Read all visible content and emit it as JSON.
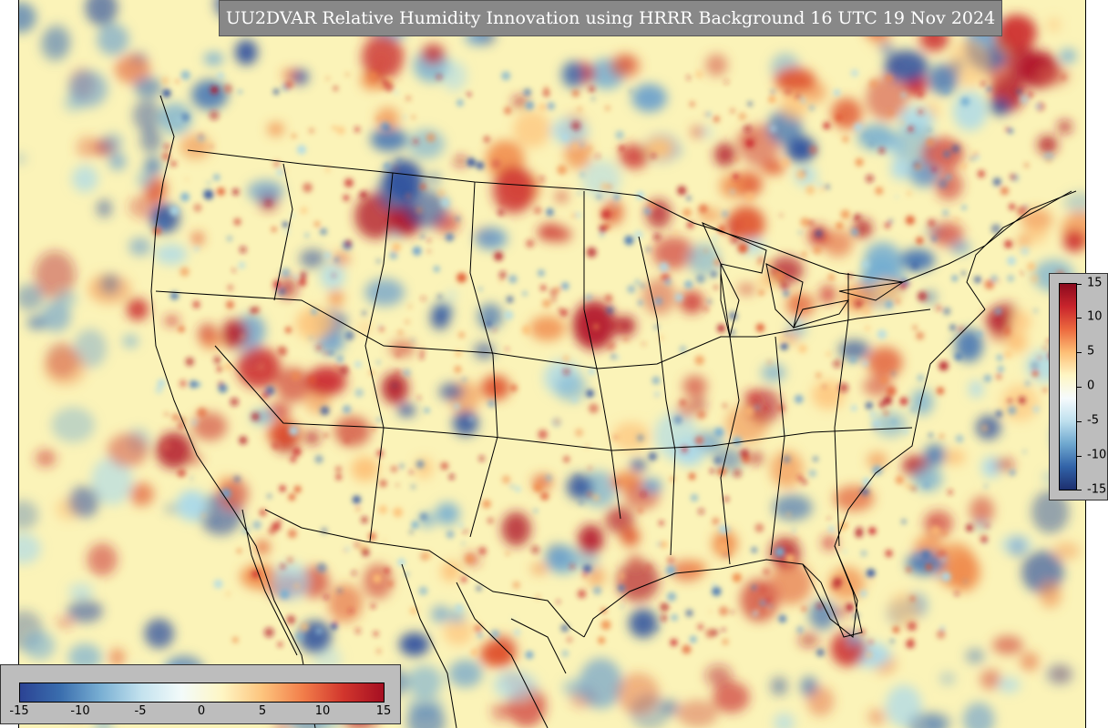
{
  "title": "UU2DVAR Relative Humidity Innovation using HRRR Background 16 UTC 19 Nov 2024",
  "map": {
    "region": "Contiguous United States, southern Canada and northern Mexico",
    "background_color": "#fbf3b8",
    "boundaries_color": "#000000"
  },
  "colorbar_right": {
    "min": -15,
    "max": 15,
    "tick_labels": [
      "15",
      "10",
      "5",
      "0",
      "-5",
      "-10",
      "-15"
    ],
    "colors": [
      "#8b0a1e",
      "#c9252c",
      "#ec6a3f",
      "#fdbf76",
      "#fef6c4",
      "#f6fbfd",
      "#bfe0ee",
      "#6fa8cf",
      "#3263a8",
      "#1d2f6e"
    ]
  },
  "colorbar_bottom": {
    "min": -15,
    "max": 15,
    "tick_labels": [
      "-15",
      "-10",
      "-5",
      "0",
      "5",
      "10",
      "15"
    ],
    "colors": [
      "#2b4394",
      "#3a6eae",
      "#79afd3",
      "#c3e2ee",
      "#f3fbfa",
      "#fef6c4",
      "#fdc47d",
      "#f27e4a",
      "#d2362d",
      "#a50f22"
    ]
  }
}
